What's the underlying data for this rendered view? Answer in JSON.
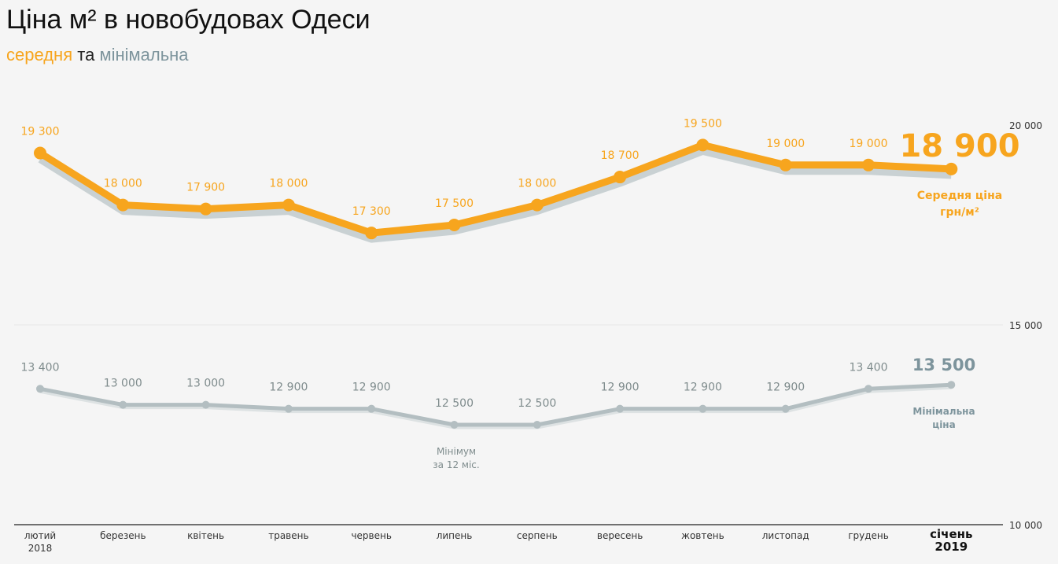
{
  "title": "Ціна м² в новобудовах Одеси",
  "subtitle": {
    "avg": "середня",
    "and": "та",
    "min": "мінімальна"
  },
  "colors": {
    "average": "#f7a51e",
    "minimum": "#b3bec1",
    "shadow": "#c9d1d3",
    "min_label": "#7d949c"
  },
  "chart_data": {
    "type": "line",
    "categories": [
      "лютий",
      "березень",
      "квітень",
      "травень",
      "червень",
      "липень",
      "серпень",
      "вересень",
      "жовтень",
      "листопад",
      "грудень",
      "січень"
    ],
    "category_years": {
      "0": "2018",
      "11": "2019"
    },
    "series": [
      {
        "name": "Середня ціна",
        "values": [
          19300,
          18000,
          17900,
          18000,
          17300,
          17500,
          18000,
          18700,
          19500,
          19000,
          19000,
          18900
        ]
      },
      {
        "name": "Мінімальна ціна",
        "values": [
          13400,
          13000,
          13000,
          12900,
          12900,
          12500,
          12500,
          12900,
          12900,
          12900,
          13400,
          13500
        ]
      }
    ],
    "value_labels": {
      "avg": [
        "19 300",
        "18 000",
        "17 900",
        "18 000",
        "17 300",
        "17 500",
        "18 000",
        "18 700",
        "19 500",
        "19 000",
        "19 000",
        "18 900"
      ],
      "min": [
        "13 400",
        "13 000",
        "13 000",
        "12 900",
        "12 900",
        "12 500",
        "12 500",
        "12 900",
        "12 900",
        "12 900",
        "13 400",
        "13 500"
      ]
    },
    "annotations": {
      "avg_label_1": "Середня ціна",
      "avg_label_2": "грн/м²",
      "min_label_1": "Мінімальна",
      "min_label_2": "ціна",
      "min_note_1": "Мінімум",
      "min_note_2": "за 12 міс."
    },
    "ylim": [
      10000,
      20000
    ],
    "yticks": [
      10000,
      15000,
      20000
    ],
    "ytick_labels": [
      "10 000",
      "15 000",
      "20 000"
    ],
    "yaxis_position": "right",
    "grid": false
  }
}
